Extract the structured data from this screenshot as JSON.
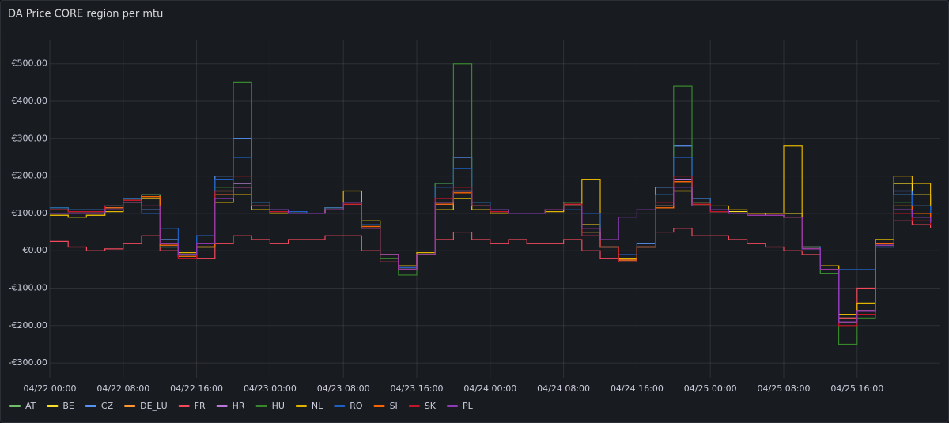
{
  "chart_data": {
    "type": "line",
    "step": true,
    "title": "DA Price CORE region per mtu",
    "x": [
      "04/22 00:00",
      "04/22 02:00",
      "04/22 04:00",
      "04/22 06:00",
      "04/22 08:00",
      "04/22 10:00",
      "04/22 12:00",
      "04/22 14:00",
      "04/22 16:00",
      "04/22 18:00",
      "04/22 20:00",
      "04/22 22:00",
      "04/23 00:00",
      "04/23 02:00",
      "04/23 04:00",
      "04/23 06:00",
      "04/23 08:00",
      "04/23 10:00",
      "04/23 12:00",
      "04/23 14:00",
      "04/23 16:00",
      "04/23 18:00",
      "04/23 20:00",
      "04/23 22:00",
      "04/24 00:00",
      "04/24 02:00",
      "04/24 04:00",
      "04/24 06:00",
      "04/24 08:00",
      "04/24 10:00",
      "04/24 12:00",
      "04/24 14:00",
      "04/24 16:00",
      "04/24 18:00",
      "04/24 20:00",
      "04/24 22:00",
      "04/25 00:00",
      "04/25 02:00",
      "04/25 04:00",
      "04/25 06:00",
      "04/25 08:00",
      "04/25 10:00",
      "04/25 12:00",
      "04/25 14:00",
      "04/25 16:00",
      "04/25 18:00",
      "04/25 20:00",
      "04/25 22:00",
      "04/26 00:00"
    ],
    "xticks": [
      "04/22 00:00",
      "04/22 08:00",
      "04/22 16:00",
      "04/23 00:00",
      "04/23 08:00",
      "04/23 16:00",
      "04/24 00:00",
      "04/24 08:00",
      "04/24 16:00",
      "04/25 00:00",
      "04/25 08:00",
      "04/25 16:00"
    ],
    "ylim": [
      -340,
      565
    ],
    "yticks": [
      {
        "value": -300,
        "label": "-€300.00"
      },
      {
        "value": -200,
        "label": "-€200.00"
      },
      {
        "value": -100,
        "label": "-€100.00"
      },
      {
        "value": 0,
        "label": "€0.00"
      },
      {
        "value": 100,
        "label": "€100.00"
      },
      {
        "value": 200,
        "label": "€200.00"
      },
      {
        "value": 300,
        "label": "€300.00"
      },
      {
        "value": 400,
        "label": "€400.00"
      },
      {
        "value": 500,
        "label": "€500.00"
      }
    ],
    "grid": true,
    "legend": "bottom",
    "series": [
      {
        "name": "AT",
        "color": "#73bf69",
        "values": [
          115,
          110,
          110,
          120,
          140,
          150,
          20,
          -10,
          10,
          160,
          180,
          120,
          110,
          105,
          100,
          115,
          130,
          70,
          -10,
          -45,
          -10,
          130,
          160,
          120,
          110,
          100,
          100,
          110,
          130,
          50,
          10,
          -25,
          10,
          120,
          190,
          130,
          110,
          100,
          95,
          95,
          90,
          10,
          -50,
          -180,
          -160,
          20,
          150,
          120,
          90
        ]
      },
      {
        "name": "BE",
        "color": "#fade2a",
        "values": [
          95,
          90,
          95,
          105,
          130,
          140,
          20,
          -5,
          10,
          130,
          150,
          110,
          100,
          100,
          100,
          110,
          130,
          80,
          -10,
          -40,
          -5,
          110,
          140,
          110,
          100,
          100,
          100,
          105,
          120,
          70,
          10,
          -20,
          10,
          120,
          160,
          120,
          110,
          105,
          95,
          100,
          100,
          10,
          -40,
          -170,
          -140,
          30,
          180,
          150,
          110
        ]
      },
      {
        "name": "CZ",
        "color": "#5794f2",
        "values": [
          110,
          105,
          105,
          120,
          140,
          110,
          30,
          -10,
          40,
          200,
          300,
          130,
          110,
          105,
          100,
          115,
          130,
          70,
          -10,
          -45,
          -10,
          180,
          250,
          130,
          110,
          100,
          100,
          110,
          120,
          40,
          10,
          -30,
          20,
          170,
          280,
          140,
          110,
          100,
          95,
          95,
          90,
          10,
          -50,
          -190,
          -170,
          10,
          160,
          120,
          90
        ]
      },
      {
        "name": "DE_LU",
        "color": "#ff9830",
        "values": [
          110,
          105,
          105,
          115,
          135,
          145,
          15,
          -15,
          10,
          150,
          170,
          120,
          105,
          100,
          100,
          110,
          125,
          65,
          -10,
          -50,
          -10,
          125,
          155,
          120,
          105,
          100,
          100,
          110,
          125,
          50,
          10,
          -25,
          10,
          115,
          185,
          125,
          105,
          100,
          95,
          95,
          90,
          5,
          -50,
          -190,
          -160,
          20,
          120,
          100,
          80
        ]
      },
      {
        "name": "FR",
        "color": "#f2495c",
        "values": [
          25,
          10,
          0,
          5,
          20,
          40,
          0,
          -10,
          -20,
          20,
          40,
          30,
          20,
          30,
          30,
          40,
          40,
          0,
          -30,
          -45,
          -10,
          30,
          50,
          30,
          20,
          30,
          20,
          20,
          30,
          0,
          -20,
          -30,
          10,
          50,
          60,
          40,
          40,
          30,
          20,
          10,
          0,
          -10,
          -60,
          -180,
          -100,
          20,
          80,
          70,
          60
        ]
      },
      {
        "name": "HR",
        "color": "#b877d9",
        "values": [
          110,
          105,
          105,
          115,
          135,
          140,
          10,
          -15,
          10,
          150,
          180,
          120,
          105,
          100,
          100,
          110,
          125,
          60,
          -10,
          -50,
          -10,
          125,
          160,
          120,
          105,
          100,
          100,
          110,
          125,
          50,
          10,
          -25,
          10,
          120,
          190,
          130,
          105,
          100,
          95,
          95,
          90,
          5,
          -50,
          -190,
          -160,
          15,
          110,
          90,
          75
        ]
      },
      {
        "name": "HU",
        "color": "#37872d",
        "values": [
          115,
          110,
          110,
          120,
          140,
          145,
          10,
          -15,
          10,
          170,
          450,
          130,
          110,
          105,
          100,
          115,
          130,
          60,
          -20,
          -65,
          -10,
          180,
          500,
          130,
          110,
          100,
          100,
          110,
          130,
          50,
          10,
          -30,
          10,
          150,
          440,
          130,
          110,
          100,
          95,
          95,
          90,
          5,
          -60,
          -250,
          -180,
          15,
          130,
          100,
          80
        ]
      },
      {
        "name": "NL",
        "color": "#e0b400",
        "values": [
          95,
          90,
          95,
          105,
          130,
          140,
          20,
          -5,
          10,
          130,
          150,
          110,
          100,
          100,
          100,
          115,
          160,
          80,
          -10,
          -40,
          -5,
          110,
          140,
          110,
          100,
          100,
          100,
          105,
          120,
          190,
          10,
          -20,
          10,
          120,
          160,
          140,
          120,
          110,
          100,
          100,
          280,
          10,
          -40,
          -170,
          -140,
          30,
          200,
          180,
          120
        ]
      },
      {
        "name": "RO",
        "color": "#1f60c4",
        "values": [
          115,
          110,
          110,
          120,
          140,
          100,
          60,
          -10,
          40,
          190,
          250,
          130,
          110,
          105,
          100,
          115,
          130,
          70,
          -10,
          -45,
          -10,
          170,
          220,
          130,
          110,
          100,
          100,
          110,
          110,
          100,
          10,
          -10,
          10,
          150,
          250,
          140,
          110,
          100,
          95,
          95,
          90,
          10,
          -50,
          -50,
          -50,
          10,
          150,
          120,
          90
        ]
      },
      {
        "name": "SI",
        "color": "#fa6400",
        "values": [
          110,
          105,
          105,
          115,
          135,
          145,
          15,
          -15,
          10,
          150,
          170,
          120,
          105,
          100,
          100,
          110,
          125,
          65,
          -10,
          -50,
          -10,
          125,
          155,
          120,
          105,
          100,
          100,
          110,
          125,
          50,
          10,
          -25,
          10,
          115,
          185,
          125,
          105,
          100,
          95,
          95,
          90,
          5,
          -50,
          -190,
          -160,
          20,
          120,
          100,
          80
        ]
      },
      {
        "name": "SK",
        "color": "#c4162a",
        "values": [
          110,
          105,
          105,
          120,
          135,
          120,
          20,
          -20,
          20,
          160,
          200,
          120,
          105,
          100,
          100,
          110,
          125,
          60,
          -10,
          -50,
          -10,
          140,
          170,
          120,
          105,
          100,
          100,
          110,
          125,
          40,
          10,
          -30,
          10,
          130,
          200,
          125,
          105,
          100,
          95,
          95,
          90,
          5,
          -50,
          -200,
          -170,
          15,
          100,
          80,
          70
        ]
      },
      {
        "name": "PL",
        "color": "#8f3bb8",
        "values": [
          100,
          100,
          100,
          110,
          130,
          120,
          20,
          -10,
          20,
          140,
          170,
          120,
          110,
          100,
          100,
          110,
          130,
          60,
          -10,
          -50,
          -10,
          130,
          160,
          120,
          110,
          100,
          100,
          110,
          120,
          60,
          30,
          90,
          110,
          120,
          170,
          120,
          110,
          100,
          95,
          95,
          90,
          5,
          -50,
          -190,
          -160,
          15,
          110,
          90,
          75
        ]
      }
    ]
  }
}
